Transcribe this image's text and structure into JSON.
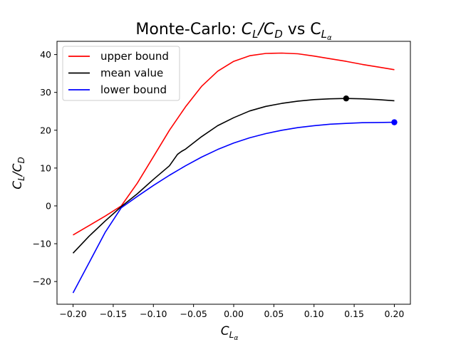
{
  "chart_data": {
    "type": "line",
    "title": "Monte-Carlo: C_L/C_D vs C_Lα",
    "title_parts": {
      "prefix": "Monte-Carlo: ",
      "main": "C",
      "main_sub": "L",
      "slash": "/C",
      "main_sub2": "D",
      "mid": " vs C",
      "x_sub": "L",
      "x_subsub": "α"
    },
    "xlabel": "C_Lα",
    "xlabel_parts": {
      "main": "C",
      "sub": "L",
      "subsub": "α"
    },
    "ylabel": "C_L/C_D",
    "ylabel_parts": {
      "main": "C",
      "sub": "L",
      "slash": "/C",
      "sub2": "D"
    },
    "xlim": [
      -0.22,
      0.22
    ],
    "ylim": [
      -26,
      43.5
    ],
    "xticks": [
      -0.2,
      -0.15,
      -0.1,
      -0.05,
      0.0,
      0.05,
      0.1,
      0.15,
      0.2
    ],
    "xtick_labels": [
      "−0.20",
      "−0.15",
      "−0.10",
      "−0.05",
      "0.00",
      "0.05",
      "0.10",
      "0.15",
      "0.20"
    ],
    "yticks": [
      -20,
      -10,
      0,
      10,
      20,
      30,
      40
    ],
    "ytick_labels": [
      "−20",
      "−10",
      "0",
      "10",
      "20",
      "30",
      "40"
    ],
    "legend_position": "top-left",
    "series": [
      {
        "name": "upper bound",
        "color": "#ff0000",
        "x": [
          -0.2,
          -0.18,
          -0.16,
          -0.14,
          -0.12,
          -0.1,
          -0.08,
          -0.06,
          -0.04,
          -0.02,
          0.0,
          0.02,
          0.04,
          0.06,
          0.08,
          0.1,
          0.12,
          0.14,
          0.16,
          0.18,
          0.2
        ],
        "y": [
          -7.7,
          -5.2,
          -2.7,
          0.0,
          6.0,
          13.0,
          20.0,
          26.2,
          31.6,
          35.6,
          38.2,
          39.7,
          40.3,
          40.4,
          40.2,
          39.6,
          38.9,
          38.2,
          37.4,
          36.7,
          36.0
        ]
      },
      {
        "name": "mean value",
        "color": "#000000",
        "x": [
          -0.2,
          -0.18,
          -0.16,
          -0.14,
          -0.12,
          -0.1,
          -0.08,
          -0.07,
          -0.065,
          -0.06,
          -0.04,
          -0.02,
          0.0,
          0.02,
          0.04,
          0.06,
          0.08,
          0.1,
          0.12,
          0.14,
          0.16,
          0.18,
          0.2
        ],
        "y": [
          -12.5,
          -8.0,
          -4.0,
          -0.2,
          3.2,
          7.0,
          10.6,
          13.6,
          14.4,
          15.0,
          18.3,
          21.2,
          23.3,
          25.1,
          26.3,
          27.1,
          27.7,
          28.1,
          28.3,
          28.4,
          28.3,
          28.1,
          27.8
        ]
      },
      {
        "name": "lower bound",
        "color": "#0000ff",
        "x": [
          -0.2,
          -0.18,
          -0.16,
          -0.14,
          -0.12,
          -0.1,
          -0.08,
          -0.06,
          -0.04,
          -0.02,
          0.0,
          0.02,
          0.04,
          0.06,
          0.08,
          0.1,
          0.12,
          0.14,
          0.16,
          0.18,
          0.2
        ],
        "y": [
          -23.0,
          -15.0,
          -7.0,
          -0.5,
          2.5,
          5.4,
          8.1,
          10.6,
          12.9,
          14.9,
          16.6,
          18.0,
          19.1,
          20.0,
          20.7,
          21.2,
          21.6,
          21.8,
          22.0,
          22.05,
          22.1
        ]
      }
    ],
    "markers": [
      {
        "name": "mean maximum",
        "x": 0.14,
        "y": 28.4,
        "color": "#000000"
      },
      {
        "name": "lower maximum",
        "x": 0.2,
        "y": 22.1,
        "color": "#0000ff"
      }
    ]
  }
}
